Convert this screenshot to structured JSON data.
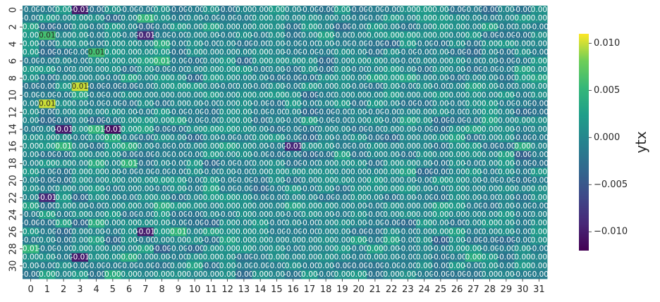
{
  "chart_data": {
    "type": "heatmap",
    "rows": 32,
    "cols": 32,
    "x_ticks": [
      "0",
      "1",
      "2",
      "3",
      "4",
      "5",
      "6",
      "7",
      "8",
      "9",
      "10",
      "11",
      "12",
      "13",
      "14",
      "15",
      "16",
      "17",
      "18",
      "19",
      "20",
      "21",
      "22",
      "23",
      "24",
      "25",
      "26",
      "27",
      "28",
      "29",
      "30",
      "31"
    ],
    "y_ticks": [
      "0",
      "2",
      "4",
      "6",
      "8",
      "10",
      "12",
      "14",
      "16",
      "18",
      "20",
      "22",
      "24",
      "26",
      "28",
      "30"
    ],
    "colorbar": {
      "label": "ytx",
      "vmin": -0.012,
      "vmax": 0.011,
      "ticks": [
        0.01,
        0.005,
        0.0,
        -0.005,
        -0.01
      ],
      "tick_labels": [
        "0.010",
        "0.005",
        "0.000",
        "−0.005",
        "−0.010"
      ]
    },
    "colormap": "viridis",
    "annotation_format": "0.00",
    "values_note_visible": "cell values annotated to two decimals",
    "highlights": [
      {
        "row": 0,
        "col": 3,
        "value": -0.01
      },
      {
        "row": 1,
        "col": 7,
        "value": 0.005
      },
      {
        "row": 3,
        "col": 1,
        "value": 0.006
      },
      {
        "row": 3,
        "col": 7,
        "value": -0.009
      },
      {
        "row": 4,
        "col": 8,
        "value": 0.004
      },
      {
        "row": 5,
        "col": 4,
        "value": 0.006
      },
      {
        "row": 6,
        "col": 8,
        "value": 0.005
      },
      {
        "row": 9,
        "col": 3,
        "value": 0.01
      },
      {
        "row": 11,
        "col": 1,
        "value": 0.01
      },
      {
        "row": 14,
        "col": 2,
        "value": -0.01
      },
      {
        "row": 14,
        "col": 4,
        "value": 0.005
      },
      {
        "row": 14,
        "col": 5,
        "value": -0.011
      },
      {
        "row": 15,
        "col": 5,
        "value": 0.004
      },
      {
        "row": 16,
        "col": 2,
        "value": 0.005
      },
      {
        "row": 16,
        "col": 16,
        "value": -0.009
      },
      {
        "row": 18,
        "col": 4,
        "value": 0.004
      },
      {
        "row": 18,
        "col": 6,
        "value": 0.005
      },
      {
        "row": 22,
        "col": 1,
        "value": -0.009
      },
      {
        "row": 23,
        "col": 8,
        "value": 0.004
      },
      {
        "row": 25,
        "col": 4,
        "value": 0.004
      },
      {
        "row": 26,
        "col": 9,
        "value": 0.005
      },
      {
        "row": 26,
        "col": 7,
        "value": -0.01
      },
      {
        "row": 28,
        "col": 0,
        "value": 0.005
      },
      {
        "row": 29,
        "col": 3,
        "value": -0.01
      },
      {
        "row": 29,
        "col": 6,
        "value": 0.004
      },
      {
        "row": 29,
        "col": 27,
        "value": 0.004
      },
      {
        "row": 31,
        "col": 5,
        "value": 0.004
      }
    ]
  }
}
